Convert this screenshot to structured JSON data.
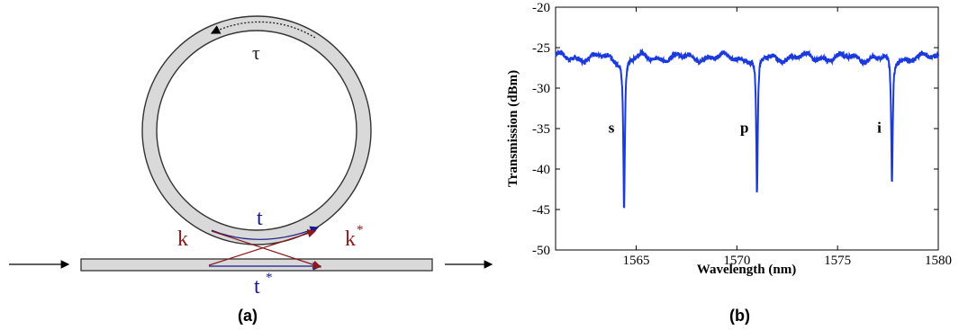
{
  "panel_a": {
    "caption": "(a)",
    "labels": {
      "tau": "τ",
      "t": "t",
      "t_star": "t",
      "k": "k",
      "k_star": "k",
      "star": "*"
    },
    "colors": {
      "ring_fill": "#d9d9d9",
      "stroke": "#333333",
      "t_color": "#1a1a8c",
      "k_color": "#8b1a1a"
    }
  },
  "panel_b": {
    "caption": "(b)",
    "chart_data": {
      "type": "line",
      "title": "",
      "xlabel": "Wavelength (nm)",
      "ylabel": "Transmission (dBm)",
      "xlim": [
        1561,
        1580
      ],
      "ylim": [
        -50,
        -20
      ],
      "xticks": [
        1565,
        1570,
        1575,
        1580
      ],
      "yticks": [
        -20,
        -25,
        -30,
        -35,
        -40,
        -45,
        -50
      ],
      "line_color": "#1a3adb",
      "baseline_dBm": -26.2,
      "resonances": [
        {
          "label": "s",
          "wavelength_nm": 1564.4,
          "min_dBm": -45.2
        },
        {
          "label": "p",
          "wavelength_nm": 1571.0,
          "min_dBm": -43.5
        },
        {
          "label": "i",
          "wavelength_nm": 1577.7,
          "min_dBm": -42.0
        }
      ]
    }
  }
}
